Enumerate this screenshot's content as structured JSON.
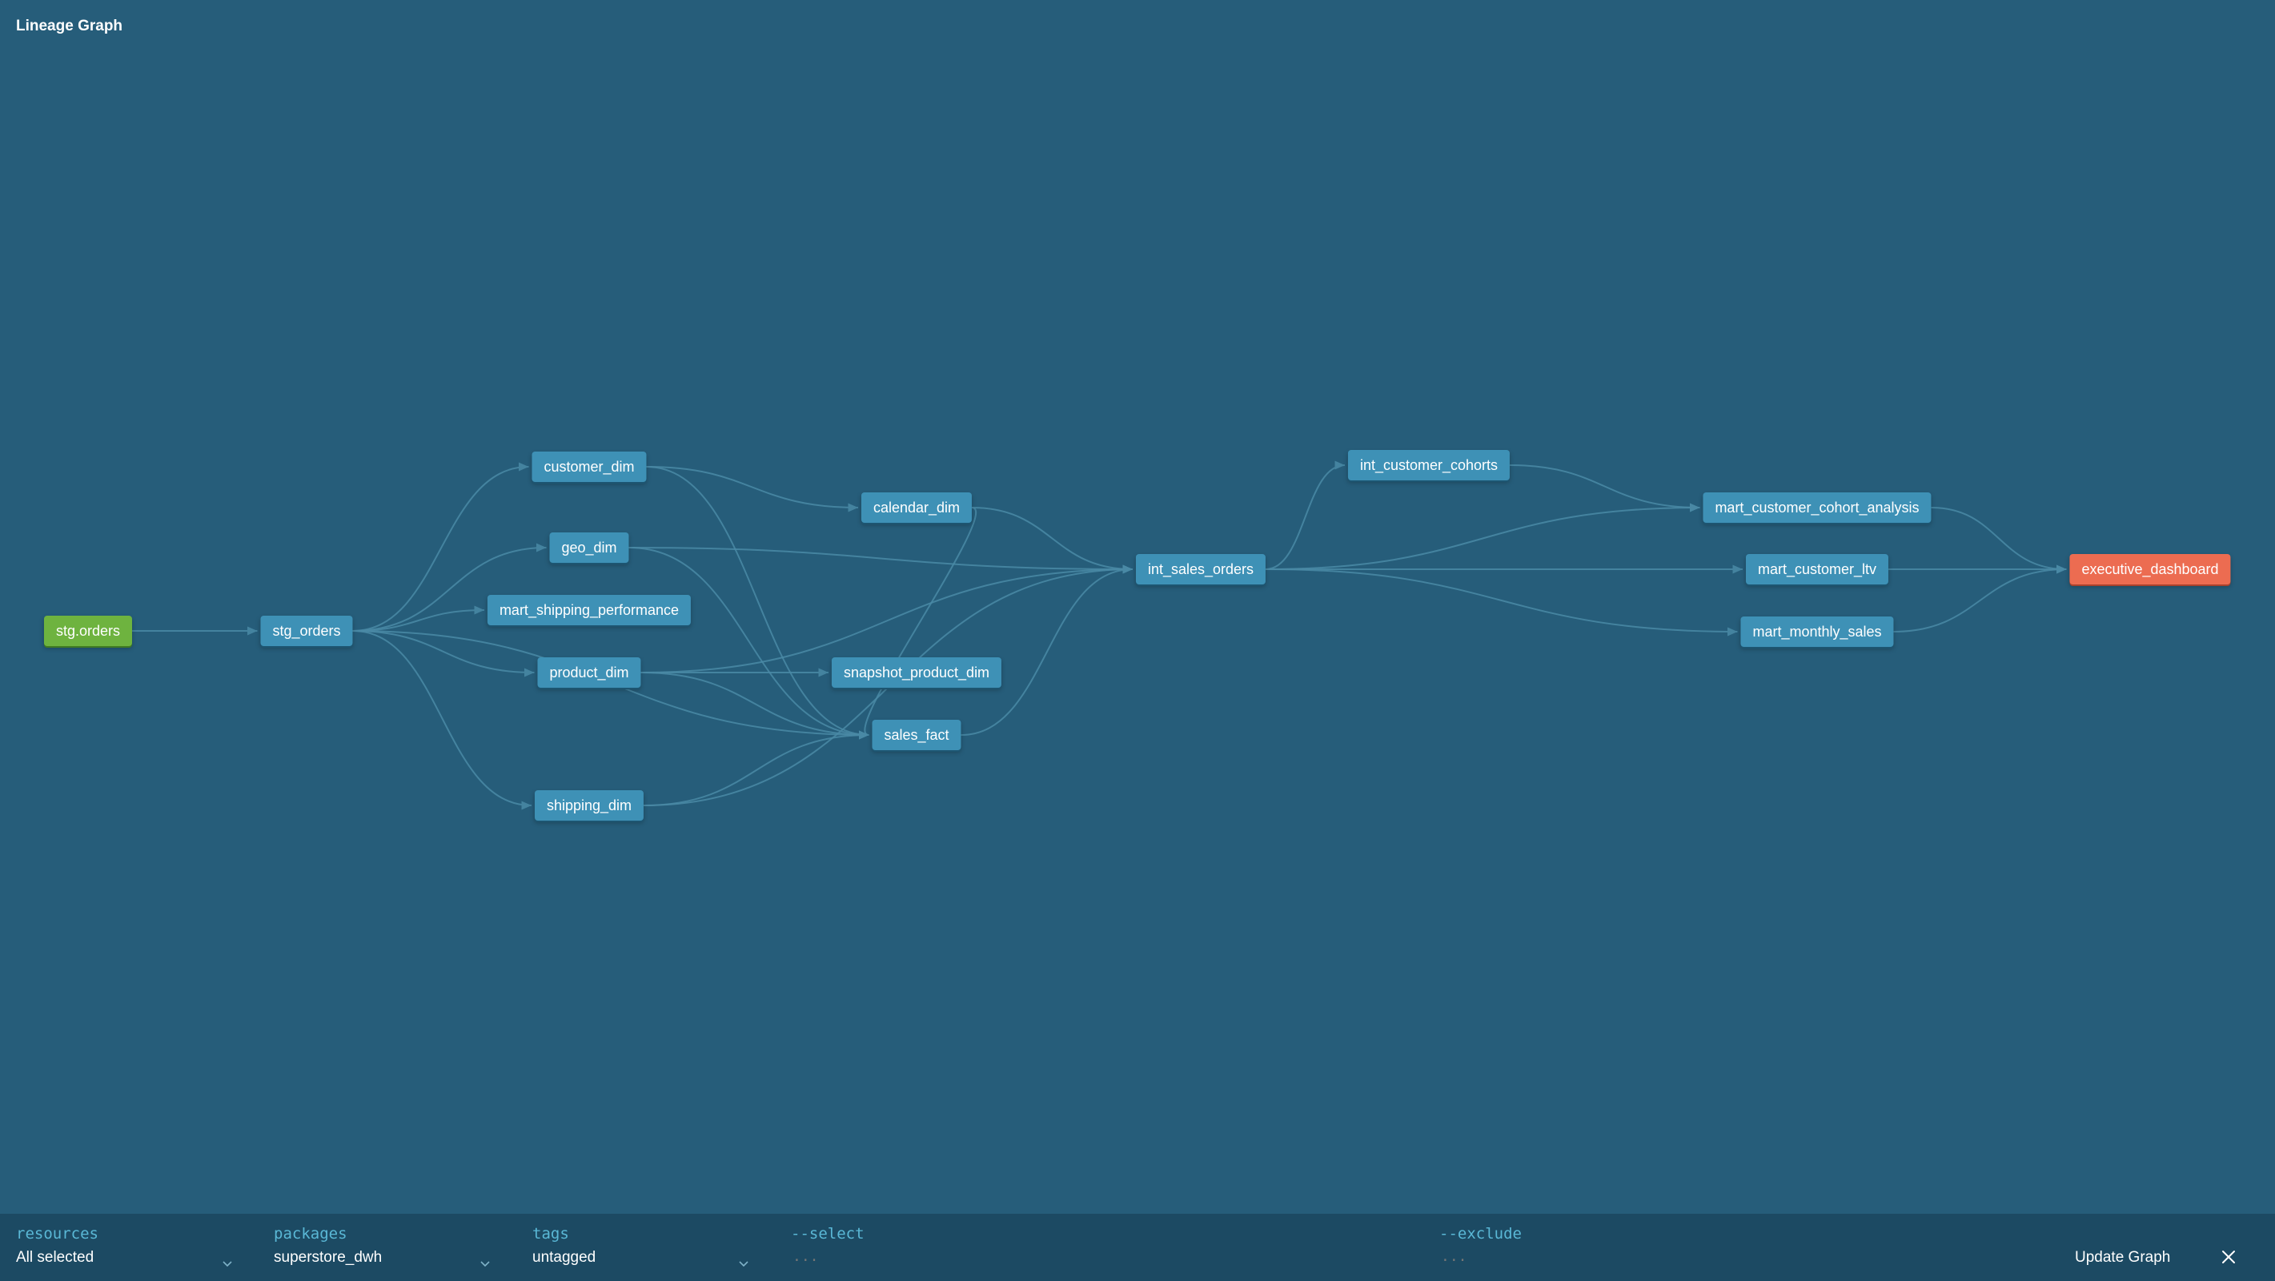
{
  "title": "Lineage Graph",
  "colors": {
    "background": "#265d7a",
    "node_model": "#3e91b6",
    "node_source": "#6eb33f",
    "node_exposure": "#ec6c51",
    "edge": "#4a8aa6",
    "filter_bar": "#1c4a63",
    "filter_label": "#5ab8d6"
  },
  "nodes": [
    {
      "id": "stg_orders_source",
      "label": "stg.orders",
      "type": "source"
    },
    {
      "id": "stg_orders",
      "label": "stg_orders",
      "type": "model"
    },
    {
      "id": "customer_dim",
      "label": "customer_dim",
      "type": "model"
    },
    {
      "id": "geo_dim",
      "label": "geo_dim",
      "type": "model"
    },
    {
      "id": "mart_shipping_performance",
      "label": "mart_shipping_performance",
      "type": "model"
    },
    {
      "id": "product_dim",
      "label": "product_dim",
      "type": "model"
    },
    {
      "id": "shipping_dim",
      "label": "shipping_dim",
      "type": "model"
    },
    {
      "id": "calendar_dim",
      "label": "calendar_dim",
      "type": "model"
    },
    {
      "id": "snapshot_product_dim",
      "label": "snapshot_product_dim",
      "type": "model"
    },
    {
      "id": "sales_fact",
      "label": "sales_fact",
      "type": "model"
    },
    {
      "id": "int_sales_orders",
      "label": "int_sales_orders",
      "type": "model"
    },
    {
      "id": "int_customer_cohorts",
      "label": "int_customer_cohorts",
      "type": "model"
    },
    {
      "id": "mart_customer_cohort_analysis",
      "label": "mart_customer_cohort_analysis",
      "type": "model"
    },
    {
      "id": "mart_customer_ltv",
      "label": "mart_customer_ltv",
      "type": "model"
    },
    {
      "id": "mart_monthly_sales",
      "label": "mart_monthly_sales",
      "type": "model"
    },
    {
      "id": "executive_dashboard",
      "label": "executive_dashboard",
      "type": "exposure"
    }
  ],
  "edges": [
    [
      "stg_orders_source",
      "stg_orders"
    ],
    [
      "stg_orders",
      "customer_dim"
    ],
    [
      "stg_orders",
      "geo_dim"
    ],
    [
      "stg_orders",
      "mart_shipping_performance"
    ],
    [
      "stg_orders",
      "product_dim"
    ],
    [
      "stg_orders",
      "shipping_dim"
    ],
    [
      "stg_orders",
      "sales_fact"
    ],
    [
      "customer_dim",
      "calendar_dim"
    ],
    [
      "customer_dim",
      "sales_fact"
    ],
    [
      "geo_dim",
      "int_sales_orders"
    ],
    [
      "geo_dim",
      "sales_fact"
    ],
    [
      "product_dim",
      "snapshot_product_dim"
    ],
    [
      "product_dim",
      "sales_fact"
    ],
    [
      "product_dim",
      "int_sales_orders"
    ],
    [
      "shipping_dim",
      "sales_fact"
    ],
    [
      "shipping_dim",
      "int_sales_orders"
    ],
    [
      "calendar_dim",
      "int_sales_orders"
    ],
    [
      "calendar_dim",
      "sales_fact"
    ],
    [
      "sales_fact",
      "int_sales_orders"
    ],
    [
      "int_sales_orders",
      "int_customer_cohorts"
    ],
    [
      "int_sales_orders",
      "mart_customer_cohort_analysis"
    ],
    [
      "int_sales_orders",
      "mart_customer_ltv"
    ],
    [
      "int_sales_orders",
      "mart_monthly_sales"
    ],
    [
      "int_customer_cohorts",
      "mart_customer_cohort_analysis"
    ],
    [
      "mart_customer_cohort_analysis",
      "executive_dashboard"
    ],
    [
      "mart_customer_ltv",
      "executive_dashboard"
    ],
    [
      "mart_monthly_sales",
      "executive_dashboard"
    ]
  ],
  "filters": {
    "resources": {
      "label": "resources",
      "value": "All selected",
      "icon": "chevron-down-icon"
    },
    "packages": {
      "label": "packages",
      "value": "superstore_dwh",
      "icon": "chevron-down-icon"
    },
    "tags": {
      "label": "tags",
      "value": "untagged",
      "icon": "chevron-down-icon"
    },
    "select": {
      "label": "--select",
      "placeholder": "..."
    },
    "exclude": {
      "label": "--exclude",
      "placeholder": "..."
    }
  },
  "actions": {
    "update_label": "Update Graph",
    "close_icon": "close-icon"
  }
}
